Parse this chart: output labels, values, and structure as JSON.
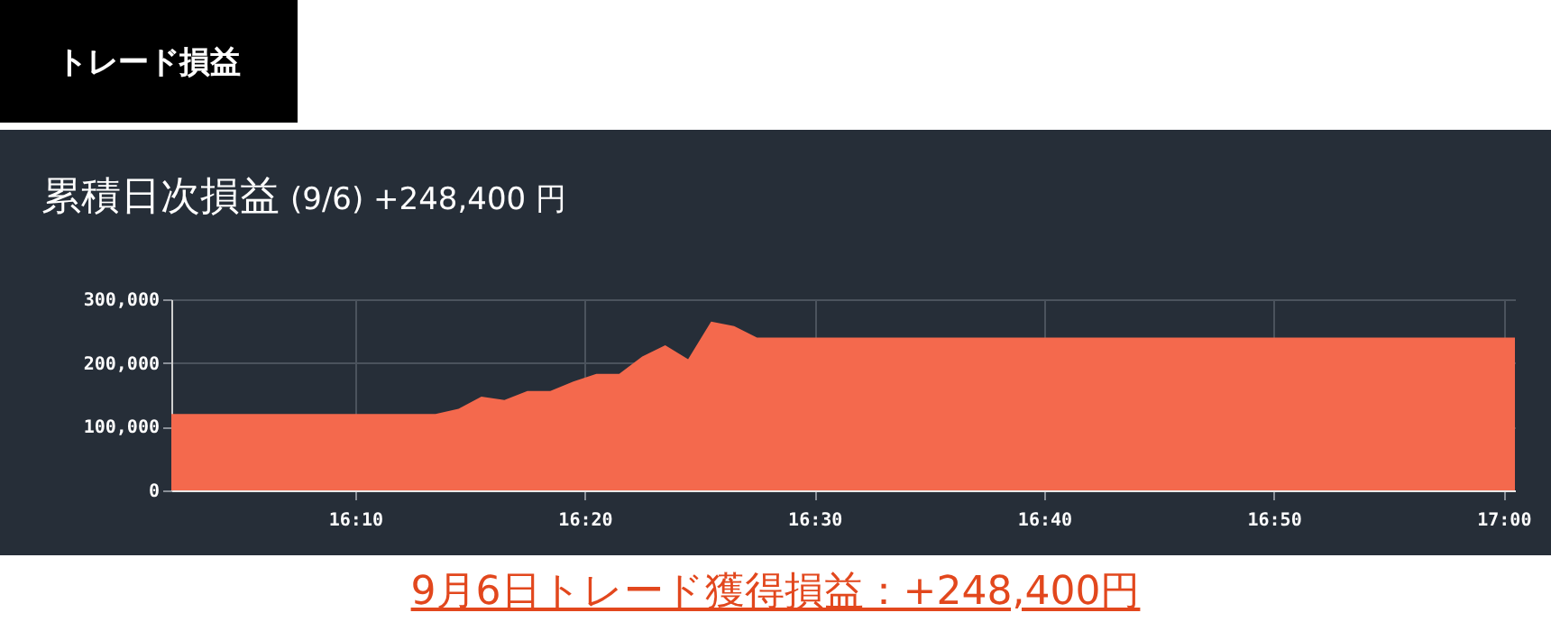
{
  "chart_data": {
    "type": "area",
    "title": "累積日次損益",
    "subtitle": "(9/6) +248,400 円",
    "annotations": [
      "トレード損益",
      "9月6日トレード獲得損益：+248,400円"
    ],
    "x": [
      16.0333,
      16.225,
      16.2417,
      16.2583,
      16.275,
      16.2917,
      16.3083,
      16.325,
      16.3417,
      16.3583,
      16.375,
      16.3917,
      16.4083,
      16.425,
      16.4417,
      16.4583,
      17.0083
    ],
    "values": [
      120000,
      120000,
      128000,
      147000,
      142000,
      156000,
      156000,
      171000,
      183000,
      183000,
      210000,
      228000,
      206000,
      265000,
      258000,
      240000,
      240000
    ],
    "color": "#f4694d",
    "xlim": [
      16.0333,
      17.0083
    ],
    "xticks": [
      {
        "value": 16.1667,
        "label": "16:10"
      },
      {
        "value": 16.3333,
        "label": "16:20"
      },
      {
        "value": 16.5,
        "label": "16:30"
      },
      {
        "value": 16.6667,
        "label": "16:40"
      },
      {
        "value": 16.8333,
        "label": "16:50"
      },
      {
        "value": 17,
        "label": "17:00"
      }
    ],
    "ylim": [
      0,
      300000
    ],
    "yticks": [
      {
        "value": 0,
        "label": "0"
      },
      {
        "value": 100000,
        "label": "100,000"
      },
      {
        "value": 200000,
        "label": "200,000"
      },
      {
        "value": 300000,
        "label": "300,000"
      }
    ],
    "grid": true
  }
}
